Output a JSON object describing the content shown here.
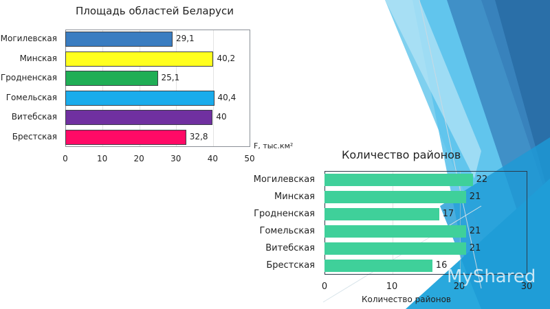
{
  "chart_data": [
    {
      "type": "bar",
      "orientation": "horizontal",
      "title": "Площадь областей Беларуси",
      "categories": [
        "Могилевская",
        "Минская",
        "Гродненская",
        "Гомельская",
        "Витебская",
        "Брестская"
      ],
      "values": [
        29.1,
        40.2,
        25.1,
        40.4,
        40,
        32.8
      ],
      "value_labels": [
        "29,1",
        "40,2",
        "25,1",
        "40,4",
        "40",
        "32,8"
      ],
      "colors": [
        "#3a7dc1",
        "#ffff1e",
        "#1fae55",
        "#1aacec",
        "#7030a0",
        "#ff0a66"
      ],
      "xlabel": "F, тыс.км²",
      "ylabel": "",
      "xlim": [
        0,
        50
      ],
      "xticks": [
        "0",
        "10",
        "20",
        "30",
        "40",
        "50"
      ],
      "grid": true,
      "legend": "none"
    },
    {
      "type": "bar",
      "orientation": "horizontal",
      "title": "Количество районов",
      "categories": [
        "Могилевская",
        "Минская",
        "Гродненская",
        "Гомельская",
        "Витебская",
        "Брестская"
      ],
      "values": [
        22,
        21,
        17,
        21,
        21,
        16
      ],
      "value_labels": [
        "22",
        "21",
        "17",
        "21",
        "21",
        "16"
      ],
      "colors": [
        "#3fd09a"
      ],
      "xlabel": "Количество районов",
      "ylabel": "",
      "xlim": [
        0,
        30
      ],
      "xticks": [
        "0",
        "10",
        "20",
        "30"
      ],
      "grid": true,
      "legend": "none"
    }
  ],
  "watermark": "MyShared"
}
